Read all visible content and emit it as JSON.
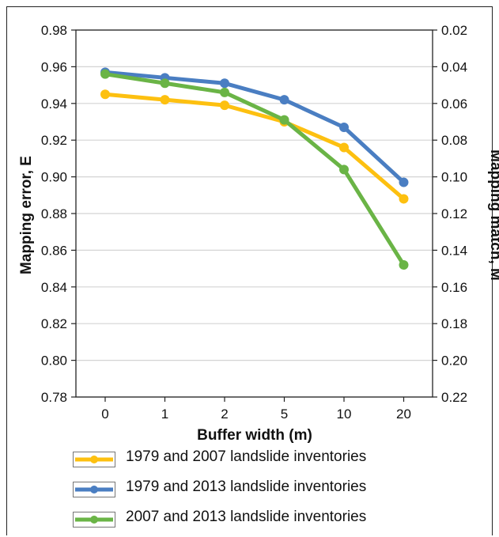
{
  "chart_data": {
    "type": "line",
    "xlabel": "Buffer width (m)",
    "ylabel": "Mapping error, E",
    "y2label": "Mapping match, M",
    "categories": [
      "0",
      "1",
      "2",
      "5",
      "10",
      "20"
    ],
    "ylim": [
      0.78,
      0.98
    ],
    "y2lim": [
      0.22,
      0.02
    ],
    "y_ticks": [
      "0.78",
      "0.80",
      "0.82",
      "0.84",
      "0.86",
      "0.88",
      "0.90",
      "0.92",
      "0.94",
      "0.96",
      "0.98"
    ],
    "y2_ticks": [
      "0.22",
      "0.20",
      "0.18",
      "0.16",
      "0.14",
      "0.12",
      "0.10",
      "0.08",
      "0.06",
      "0.04",
      "0.02"
    ],
    "grid": true,
    "legend_position": "bottom",
    "series": [
      {
        "name": "1979 and 2007 landslide inventories",
        "color": "#FDC010",
        "values": [
          0.945,
          0.942,
          0.939,
          0.93,
          0.916,
          0.888
        ]
      },
      {
        "name": "1979 and 2013 landslide inventories",
        "color": "#4A7EC2",
        "values": [
          0.957,
          0.954,
          0.951,
          0.942,
          0.927,
          0.897
        ]
      },
      {
        "name": "2007 and 2013 landslide inventories",
        "color": "#6AB446",
        "values": [
          0.956,
          0.951,
          0.946,
          0.931,
          0.904,
          0.852
        ]
      }
    ]
  }
}
